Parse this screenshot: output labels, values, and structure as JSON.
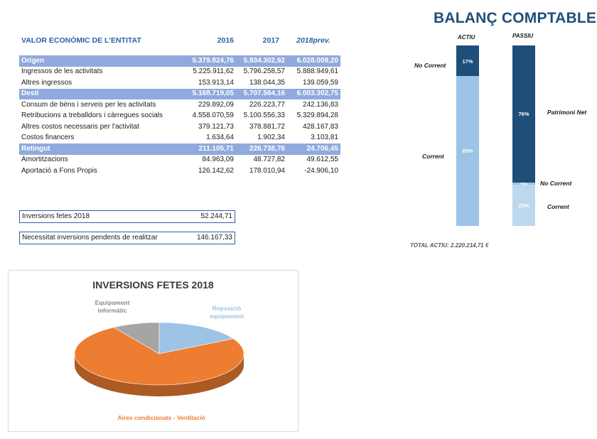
{
  "econ": {
    "title": "VALOR ECONÒMIC DE L'ENTITAT",
    "cols": [
      "2016",
      "2017",
      "2018prev."
    ],
    "rows": [
      {
        "label": "Origen",
        "v": [
          "5.379.824,76",
          "5.934.302,92",
          "6.028.009,20"
        ],
        "band": true
      },
      {
        "label": "Ingressos de les activitats",
        "v": [
          "5.225.911,62",
          "5.796.258,57",
          "5.888.949,61"
        ]
      },
      {
        "label": "Altres ingressos",
        "v": [
          "153.913,14",
          "138.044,35",
          "139.059,59"
        ]
      },
      {
        "label": "Destí",
        "v": [
          "5.168.719,05",
          "5.707.564,16",
          "6.003.302,75"
        ],
        "band": true
      },
      {
        "label": "Consum de bèns i serveis per les activitats",
        "v": [
          "229.892,09",
          "226.223,77",
          "242.136,83"
        ]
      },
      {
        "label": "Retribucions a treballdors i càrregues socials",
        "v": [
          "4.558.070,59",
          "5.100.556,33",
          "5.329.894,28"
        ]
      },
      {
        "label": "Altres costos necessaris per l'activitat",
        "v": [
          "379.121,73",
          "378.881,72",
          "428.167,83"
        ]
      },
      {
        "label": "Costos financers",
        "v": [
          "1.634,64",
          "1.902,34",
          "3.103,81"
        ]
      },
      {
        "label": "Retingut",
        "v": [
          "211.105,71",
          "226.738,76",
          "24.706,45"
        ],
        "band": true
      },
      {
        "label": "Amortitzacions",
        "v": [
          "84.963,09",
          "48.727,82",
          "49.612,55"
        ]
      },
      {
        "label": "Aportació a Fons Propis",
        "v": [
          "126.142,62",
          "178.010,94",
          "-24.906,10"
        ]
      }
    ]
  },
  "inversions": {
    "label": "Inversions fetes 2018",
    "value": "52.244,71"
  },
  "necessitat": {
    "label": "Necessitat inversions pendents de realitzar",
    "value": "146.167,33"
  },
  "colors": {
    "header_blue": "#2e5fa8",
    "band": "#8faadc",
    "dark": "#1f4e79",
    "light": "#9dc3e6",
    "lighter": "#bdd7ee",
    "orange": "#ed7d31",
    "gray": "#a5a5a5"
  },
  "chart_data": [
    {
      "type": "bar",
      "title": "BALANÇ COMPTABLE",
      "stacked": true,
      "categories": [
        "ACTIU",
        "PASSIU"
      ],
      "series": [
        {
          "name": "No Corrent",
          "values": [
            17,
            null
          ],
          "labels": [
            "17%",
            null
          ]
        },
        {
          "name": "Corrent",
          "values": [
            83,
            null
          ],
          "labels": [
            "83%",
            null
          ]
        },
        {
          "name": "Patrimoni Net",
          "values": [
            null,
            76
          ],
          "labels": [
            null,
            "76%"
          ]
        },
        {
          "name": "No Corrent",
          "values": [
            null,
            1
          ],
          "labels": [
            null,
            "1%"
          ]
        },
        {
          "name": "Corrent",
          "values": [
            null,
            23
          ],
          "labels": [
            null,
            "23%"
          ]
        }
      ],
      "footer": "TOTAL ACTIU: 2.220.214,71 €"
    },
    {
      "type": "pie",
      "title": "INVERSIONS FETES 2018",
      "slices": [
        {
          "label": "Reposició equipament",
          "value": 17,
          "color": "#9dc3e6"
        },
        {
          "label": "Aires condicionats - Ventilació",
          "value": 74,
          "color": "#ed7d31"
        },
        {
          "label": "Equipament informàtic",
          "value": 9,
          "color": "#a5a5a5"
        }
      ]
    }
  ]
}
